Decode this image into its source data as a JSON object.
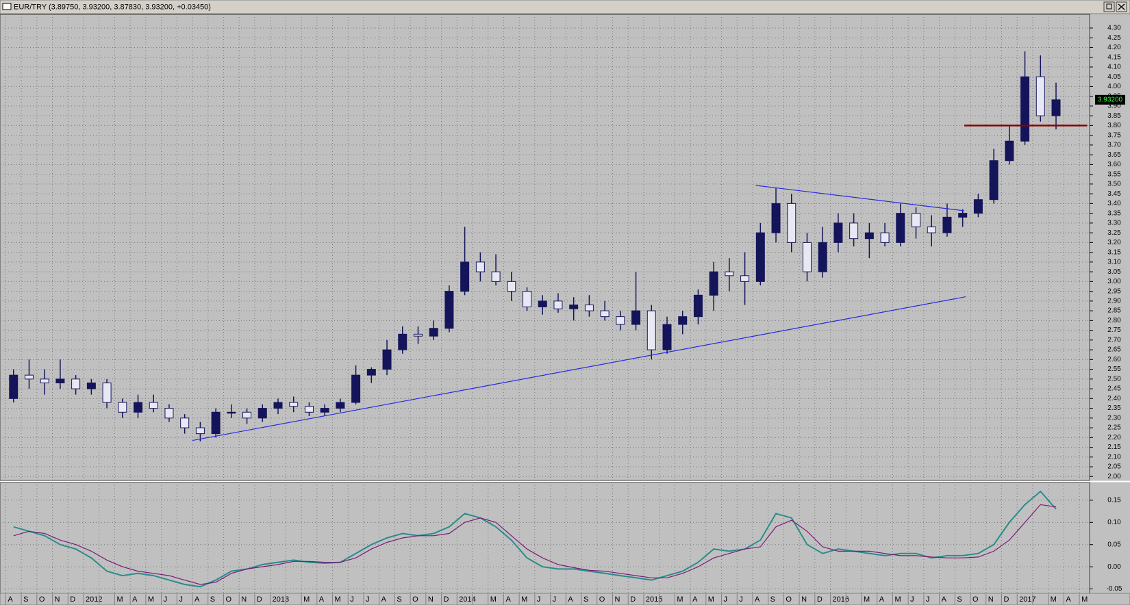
{
  "window_title": "EUR/TRY (3.89750, 3.93200, 3.87830, 3.93200, +0.03450)",
  "chart_data": [
    {
      "type": "candlestick",
      "color": "#14145a",
      "categories": [
        "A",
        "S",
        "O",
        "N",
        "D",
        "2012",
        null,
        "M",
        "A",
        "M",
        "J",
        "J",
        "A",
        "S",
        "O",
        "N",
        "D",
        "2013",
        null,
        "M",
        "A",
        "M",
        "J",
        "J",
        "A",
        "S",
        "O",
        "N",
        "D",
        "2014",
        null,
        "M",
        "A",
        "M",
        "J",
        "J",
        "A",
        "S",
        "O",
        "N",
        "D",
        "2015",
        null,
        "M",
        "A",
        "M",
        "J",
        "J",
        "A",
        "S",
        "O",
        "N",
        "D",
        "2016",
        null,
        "M",
        "A",
        "M",
        "J",
        "J",
        "A",
        "S",
        "O",
        "N",
        "D",
        "2017",
        null,
        "M",
        "A",
        "M"
      ],
      "open": [
        2.4,
        2.52,
        2.5,
        2.48,
        2.5,
        2.45,
        2.48,
        2.38,
        2.33,
        2.38,
        2.35,
        2.3,
        2.25,
        2.22,
        2.33,
        2.33,
        2.3,
        2.35,
        2.38,
        2.36,
        2.33,
        2.35,
        2.38,
        2.52,
        2.55,
        2.65,
        2.73,
        2.72,
        2.76,
        2.95,
        3.1,
        3.05,
        3.0,
        2.95,
        2.87,
        2.9,
        2.86,
        2.88,
        2.85,
        2.82,
        2.78,
        2.85,
        2.65,
        2.78,
        2.82,
        2.93,
        3.05,
        3.03,
        3.0,
        3.25,
        3.4,
        3.2,
        3.05,
        3.2,
        3.3,
        3.22,
        3.25,
        3.2,
        3.35,
        3.28,
        3.25,
        3.33,
        3.35,
        3.42,
        3.62,
        3.72,
        4.05,
        3.85,
        null,
        null
      ],
      "high": [
        2.55,
        2.6,
        2.55,
        2.6,
        2.52,
        2.5,
        2.5,
        2.4,
        2.42,
        2.42,
        2.37,
        2.32,
        2.28,
        2.35,
        2.37,
        2.35,
        2.37,
        2.4,
        2.41,
        2.38,
        2.37,
        2.4,
        2.57,
        2.56,
        2.7,
        2.77,
        2.77,
        2.8,
        2.98,
        3.28,
        3.15,
        3.14,
        3.05,
        2.97,
        2.93,
        2.94,
        2.92,
        2.93,
        2.9,
        2.85,
        3.05,
        2.88,
        2.82,
        2.85,
        2.96,
        3.1,
        3.12,
        3.15,
        3.3,
        3.48,
        3.45,
        3.25,
        3.28,
        3.35,
        3.35,
        3.3,
        3.3,
        3.4,
        3.38,
        3.34,
        3.4,
        3.37,
        3.45,
        3.68,
        3.8,
        4.18,
        4.16,
        4.02,
        null,
        null
      ],
      "low": [
        2.38,
        2.45,
        2.42,
        2.45,
        2.42,
        2.42,
        2.35,
        2.3,
        2.3,
        2.33,
        2.28,
        2.22,
        2.18,
        2.2,
        2.3,
        2.27,
        2.28,
        2.32,
        2.33,
        2.31,
        2.31,
        2.33,
        2.37,
        2.48,
        2.52,
        2.63,
        2.68,
        2.7,
        2.74,
        2.93,
        3.0,
        2.98,
        2.9,
        2.85,
        2.83,
        2.84,
        2.8,
        2.82,
        2.8,
        2.75,
        2.75,
        2.6,
        2.63,
        2.73,
        2.78,
        2.85,
        2.95,
        2.88,
        2.98,
        3.2,
        3.15,
        3.0,
        3.02,
        3.15,
        3.18,
        3.12,
        3.18,
        3.18,
        3.22,
        3.18,
        3.23,
        3.28,
        3.33,
        3.4,
        3.6,
        3.7,
        3.82,
        3.78,
        null,
        null
      ],
      "close": [
        2.52,
        2.5,
        2.48,
        2.5,
        2.45,
        2.48,
        2.38,
        2.33,
        2.38,
        2.35,
        2.3,
        2.25,
        2.22,
        2.33,
        2.33,
        2.3,
        2.35,
        2.38,
        2.36,
        2.33,
        2.35,
        2.38,
        2.52,
        2.55,
        2.65,
        2.73,
        2.72,
        2.76,
        2.95,
        3.1,
        3.05,
        3.0,
        2.95,
        2.87,
        2.9,
        2.86,
        2.88,
        2.85,
        2.82,
        2.78,
        2.85,
        2.65,
        2.78,
        2.82,
        2.93,
        3.05,
        3.03,
        3.0,
        3.25,
        3.4,
        3.2,
        3.05,
        3.2,
        3.3,
        3.22,
        3.25,
        3.2,
        3.35,
        3.28,
        3.25,
        3.33,
        3.35,
        3.42,
        3.62,
        3.72,
        4.05,
        3.85,
        3.932,
        null,
        null
      ],
      "ylim": [
        1.98,
        4.37
      ],
      "yticks": [
        {
          "value": 2.0,
          "label": "2.00"
        },
        {
          "value": 2.05,
          "label": "2.05"
        },
        {
          "value": 2.1,
          "label": "2.10"
        },
        {
          "value": 2.15,
          "label": "2.15"
        },
        {
          "value": 2.2,
          "label": "2.20"
        },
        {
          "value": 2.25,
          "label": "2.25"
        },
        {
          "value": 2.3,
          "label": "2.30"
        },
        {
          "value": 2.35,
          "label": "2.35"
        },
        {
          "value": 2.4,
          "label": "2.40"
        },
        {
          "value": 2.45,
          "label": "2.45"
        },
        {
          "value": 2.5,
          "label": "2.50"
        },
        {
          "value": 2.55,
          "label": "2.55"
        },
        {
          "value": 2.6,
          "label": "2.60"
        },
        {
          "value": 2.65,
          "label": "2.65"
        },
        {
          "value": 2.7,
          "label": "2.70"
        },
        {
          "value": 2.75,
          "label": "2.75"
        },
        {
          "value": 2.8,
          "label": "2.80"
        },
        {
          "value": 2.85,
          "label": "2.85"
        },
        {
          "value": 2.9,
          "label": "2.90"
        },
        {
          "value": 2.95,
          "label": "2.95"
        },
        {
          "value": 3.0,
          "label": "3.00"
        },
        {
          "value": 3.05,
          "label": "3.05"
        },
        {
          "value": 3.1,
          "label": "3.10"
        },
        {
          "value": 3.15,
          "label": "3.15"
        },
        {
          "value": 3.2,
          "label": "3.20"
        },
        {
          "value": 3.25,
          "label": "3.25"
        },
        {
          "value": 3.3,
          "label": "3.30"
        },
        {
          "value": 3.35,
          "label": "3.35"
        },
        {
          "value": 3.4,
          "label": "3.40"
        },
        {
          "value": 3.45,
          "label": "3.45"
        },
        {
          "value": 3.5,
          "label": "3.50"
        },
        {
          "value": 3.55,
          "label": "3.55"
        },
        {
          "value": 3.6,
          "label": "3.60"
        },
        {
          "value": 3.65,
          "label": "3.65"
        },
        {
          "value": 3.7,
          "label": "3.70"
        },
        {
          "value": 3.75,
          "label": "3.75"
        },
        {
          "value": 3.8,
          "label": "3.80"
        },
        {
          "value": 3.85,
          "label": "3.85"
        },
        {
          "value": 3.9,
          "label": "3.90"
        },
        {
          "value": 3.95,
          "label": "3.95"
        },
        {
          "value": 4.0,
          "label": "4.00"
        },
        {
          "value": 4.05,
          "label": "4.05"
        },
        {
          "value": 4.1,
          "label": "4.10"
        },
        {
          "value": 4.15,
          "label": "4.15"
        },
        {
          "value": 4.2,
          "label": "4.20"
        },
        {
          "value": 4.25,
          "label": "4.25"
        },
        {
          "value": 4.3,
          "label": "4.30"
        }
      ],
      "grid": true,
      "trendlines": [
        {
          "x": [
            12.0,
            61.7
          ],
          "y": [
            2.185,
            2.922
          ],
          "color": "#2828e6"
        },
        {
          "x": [
            48.2,
            61.6
          ],
          "y": [
            3.493,
            3.363
          ],
          "color": "#2828e6"
        },
        {
          "x": [
            61.6,
            69.5
          ],
          "y": [
            3.8,
            3.8
          ],
          "color": "#8b0000"
        }
      ],
      "last_price": {
        "value": 3.932,
        "label": "3.93200"
      }
    },
    {
      "type": "line",
      "series": [
        {
          "color": "#2a8c8c",
          "values": [
            0.09,
            0.08,
            0.07,
            0.05,
            0.04,
            0.02,
            -0.01,
            -0.02,
            -0.015,
            -0.02,
            -0.03,
            -0.04,
            -0.045,
            -0.03,
            -0.01,
            -0.005,
            0.005,
            0.01,
            0.015,
            0.01,
            0.008,
            0.01,
            0.03,
            0.05,
            0.065,
            0.075,
            0.07,
            0.075,
            0.09,
            0.12,
            0.11,
            0.09,
            0.06,
            0.02,
            0.0,
            -0.005,
            -0.005,
            -0.01,
            -0.015,
            -0.02,
            -0.025,
            -0.03,
            -0.02,
            -0.01,
            0.01,
            0.04,
            0.035,
            0.04,
            0.06,
            0.12,
            0.11,
            0.05,
            0.03,
            0.04,
            0.035,
            0.03,
            0.025,
            0.03,
            0.03,
            0.02,
            0.025,
            0.025,
            0.03,
            0.05,
            0.1,
            0.14,
            0.17,
            0.13,
            null,
            null
          ]
        },
        {
          "color": "#7a1a7a",
          "values": [
            0.07,
            0.08,
            0.075,
            0.06,
            0.05,
            0.035,
            0.015,
            0.0,
            -0.01,
            -0.015,
            -0.02,
            -0.03,
            -0.04,
            -0.035,
            -0.015,
            -0.005,
            0.0,
            0.005,
            0.012,
            0.012,
            0.01,
            0.01,
            0.02,
            0.04,
            0.055,
            0.065,
            0.07,
            0.07,
            0.075,
            0.1,
            0.11,
            0.1,
            0.07,
            0.04,
            0.02,
            0.005,
            -0.002,
            -0.008,
            -0.01,
            -0.015,
            -0.02,
            -0.025,
            -0.025,
            -0.015,
            0.0,
            0.02,
            0.03,
            0.04,
            0.045,
            0.09,
            0.105,
            0.08,
            0.045,
            0.035,
            0.035,
            0.035,
            0.03,
            0.025,
            0.025,
            0.022,
            0.02,
            0.02,
            0.022,
            0.035,
            0.06,
            0.1,
            0.14,
            0.135,
            null,
            null
          ]
        }
      ],
      "ylim": [
        -0.06,
        0.19
      ],
      "yticks": [
        -0.05,
        {
          "value": 0,
          "label": "0.00"
        },
        0.05,
        {
          "value": 0.1,
          "label": "0.10"
        },
        0.15
      ],
      "grid": true
    }
  ]
}
